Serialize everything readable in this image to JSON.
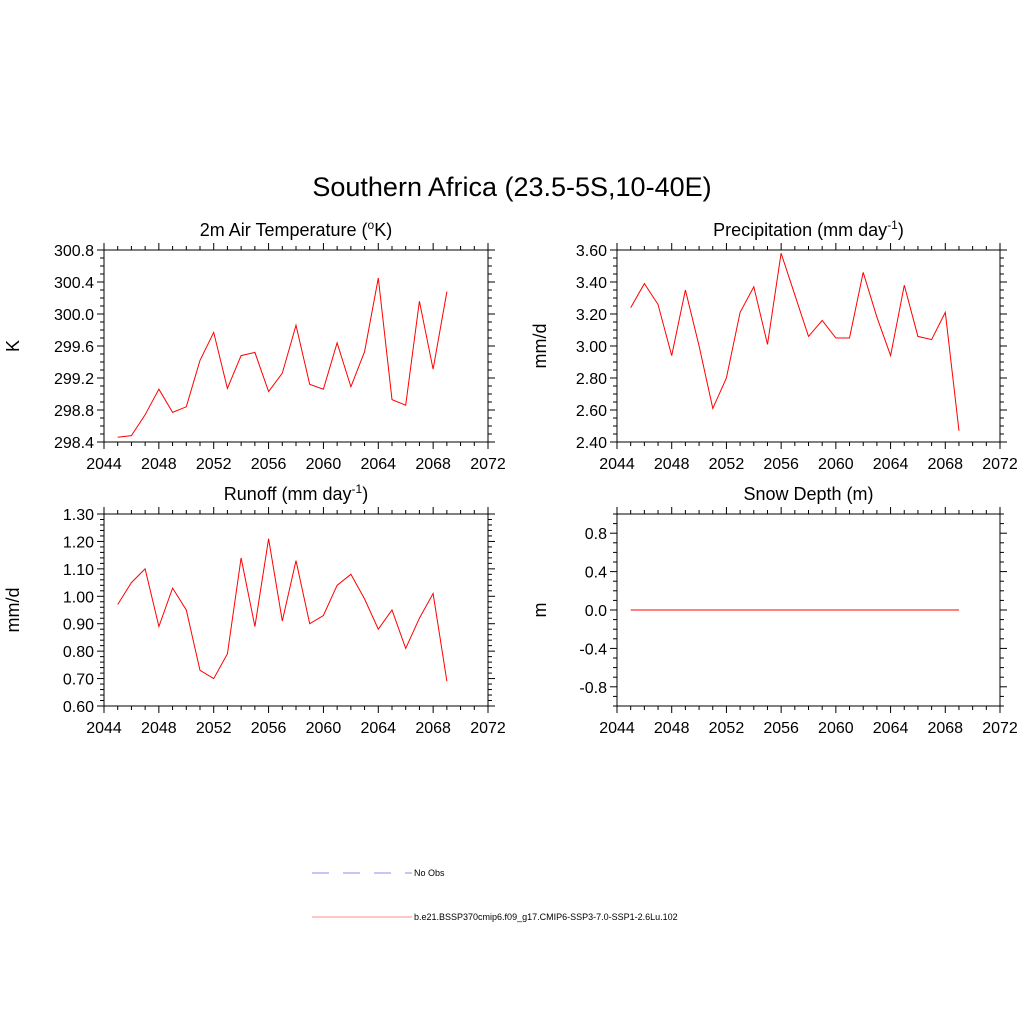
{
  "main_title": "Southern Africa (23.5-5S,10-40E)",
  "legend": {
    "entries": [
      {
        "label": "No Obs",
        "color": "#8c8cf0",
        "style": "dashed"
      },
      {
        "label": "b.e21.BSSP370cmip6.f09_g17.CMIP6-SSP3-7.0-SSP1-2.6Lu.102",
        "color": "#ff8c8c",
        "style": "solid"
      }
    ]
  },
  "chart_data": [
    {
      "type": "line",
      "title": "2m Air Temperature (",
      "title_sup": "o",
      "title_suffix": "K)",
      "ylabel": "K",
      "xlim": [
        2044,
        2072
      ],
      "ylim": [
        298.4,
        300.8
      ],
      "xticks": [
        "2044",
        "2048",
        "2052",
        "2056",
        "2060",
        "2064",
        "2068",
        "2072"
      ],
      "yticks": [
        "298.4",
        "298.8",
        "299.2",
        "299.6",
        "300.0",
        "300.4",
        "300.8"
      ],
      "color": "#ff0000",
      "x": [
        2045,
        2046,
        2047,
        2048,
        2049,
        2050,
        2051,
        2052,
        2053,
        2054,
        2055,
        2056,
        2057,
        2058,
        2059,
        2060,
        2061,
        2062,
        2063,
        2064,
        2065,
        2066,
        2067,
        2068,
        2069
      ],
      "values": [
        298.46,
        298.48,
        298.74,
        299.06,
        298.77,
        298.84,
        299.42,
        299.77,
        299.07,
        299.48,
        299.52,
        299.03,
        299.26,
        299.86,
        299.12,
        299.06,
        299.64,
        299.09,
        299.53,
        300.45,
        298.93,
        298.86,
        300.16,
        299.31,
        300.28
      ]
    },
    {
      "type": "line",
      "title": "Precipitation (mm day",
      "title_sup": "-1",
      "title_suffix": ")",
      "ylabel": "mm/d",
      "xlim": [
        2044,
        2072
      ],
      "ylim": [
        2.4,
        3.6
      ],
      "xticks": [
        "2044",
        "2048",
        "2052",
        "2056",
        "2060",
        "2064",
        "2068",
        "2072"
      ],
      "yticks": [
        "2.40",
        "2.60",
        "2.80",
        "3.00",
        "3.20",
        "3.40",
        "3.60"
      ],
      "color": "#ff0000",
      "x": [
        2045,
        2046,
        2047,
        2048,
        2049,
        2050,
        2051,
        2052,
        2053,
        2054,
        2055,
        2056,
        2057,
        2058,
        2059,
        2060,
        2061,
        2062,
        2063,
        2064,
        2065,
        2066,
        2067,
        2068,
        2069
      ],
      "values": [
        3.24,
        3.39,
        3.26,
        2.94,
        3.35,
        3.0,
        2.61,
        2.8,
        3.21,
        3.37,
        3.01,
        3.58,
        3.32,
        3.06,
        3.16,
        3.05,
        3.05,
        3.46,
        3.18,
        2.94,
        3.38,
        3.06,
        3.04,
        3.21,
        2.47
      ]
    },
    {
      "type": "line",
      "title": "Runoff (mm day",
      "title_sup": "-1",
      "title_suffix": ")",
      "ylabel": "mm/d",
      "xlim": [
        2044,
        2072
      ],
      "ylim": [
        0.6,
        1.3
      ],
      "xticks": [
        "2044",
        "2048",
        "2052",
        "2056",
        "2060",
        "2064",
        "2068",
        "2072"
      ],
      "yticks": [
        "0.60",
        "0.70",
        "0.80",
        "0.90",
        "1.00",
        "1.10",
        "1.20",
        "1.30"
      ],
      "color": "#ff0000",
      "x": [
        2045,
        2046,
        2047,
        2048,
        2049,
        2050,
        2051,
        2052,
        2053,
        2054,
        2055,
        2056,
        2057,
        2058,
        2059,
        2060,
        2061,
        2062,
        2063,
        2064,
        2065,
        2066,
        2067,
        2068,
        2069
      ],
      "values": [
        0.97,
        1.05,
        1.1,
        0.89,
        1.03,
        0.95,
        0.73,
        0.7,
        0.79,
        1.14,
        0.89,
        1.21,
        0.91,
        1.13,
        0.9,
        0.93,
        1.04,
        1.08,
        0.99,
        0.88,
        0.95,
        0.81,
        0.92,
        1.01,
        0.69
      ]
    },
    {
      "type": "line",
      "title": "Snow Depth (m)",
      "title_sup": "",
      "title_suffix": "",
      "ylabel": "m",
      "xlim": [
        2044,
        2072
      ],
      "ylim": [
        -1.0,
        1.0
      ],
      "xticks": [
        "2044",
        "2048",
        "2052",
        "2056",
        "2060",
        "2064",
        "2068",
        "2072"
      ],
      "yticks": [
        "-0.8",
        "-0.4",
        "0.0",
        "0.4",
        "0.8"
      ],
      "ytick_values": [
        -0.8,
        -0.4,
        0.0,
        0.4,
        0.8
      ],
      "color": "#ff0000",
      "x": [
        2045,
        2069
      ],
      "values": [
        0.0,
        0.0
      ]
    }
  ]
}
